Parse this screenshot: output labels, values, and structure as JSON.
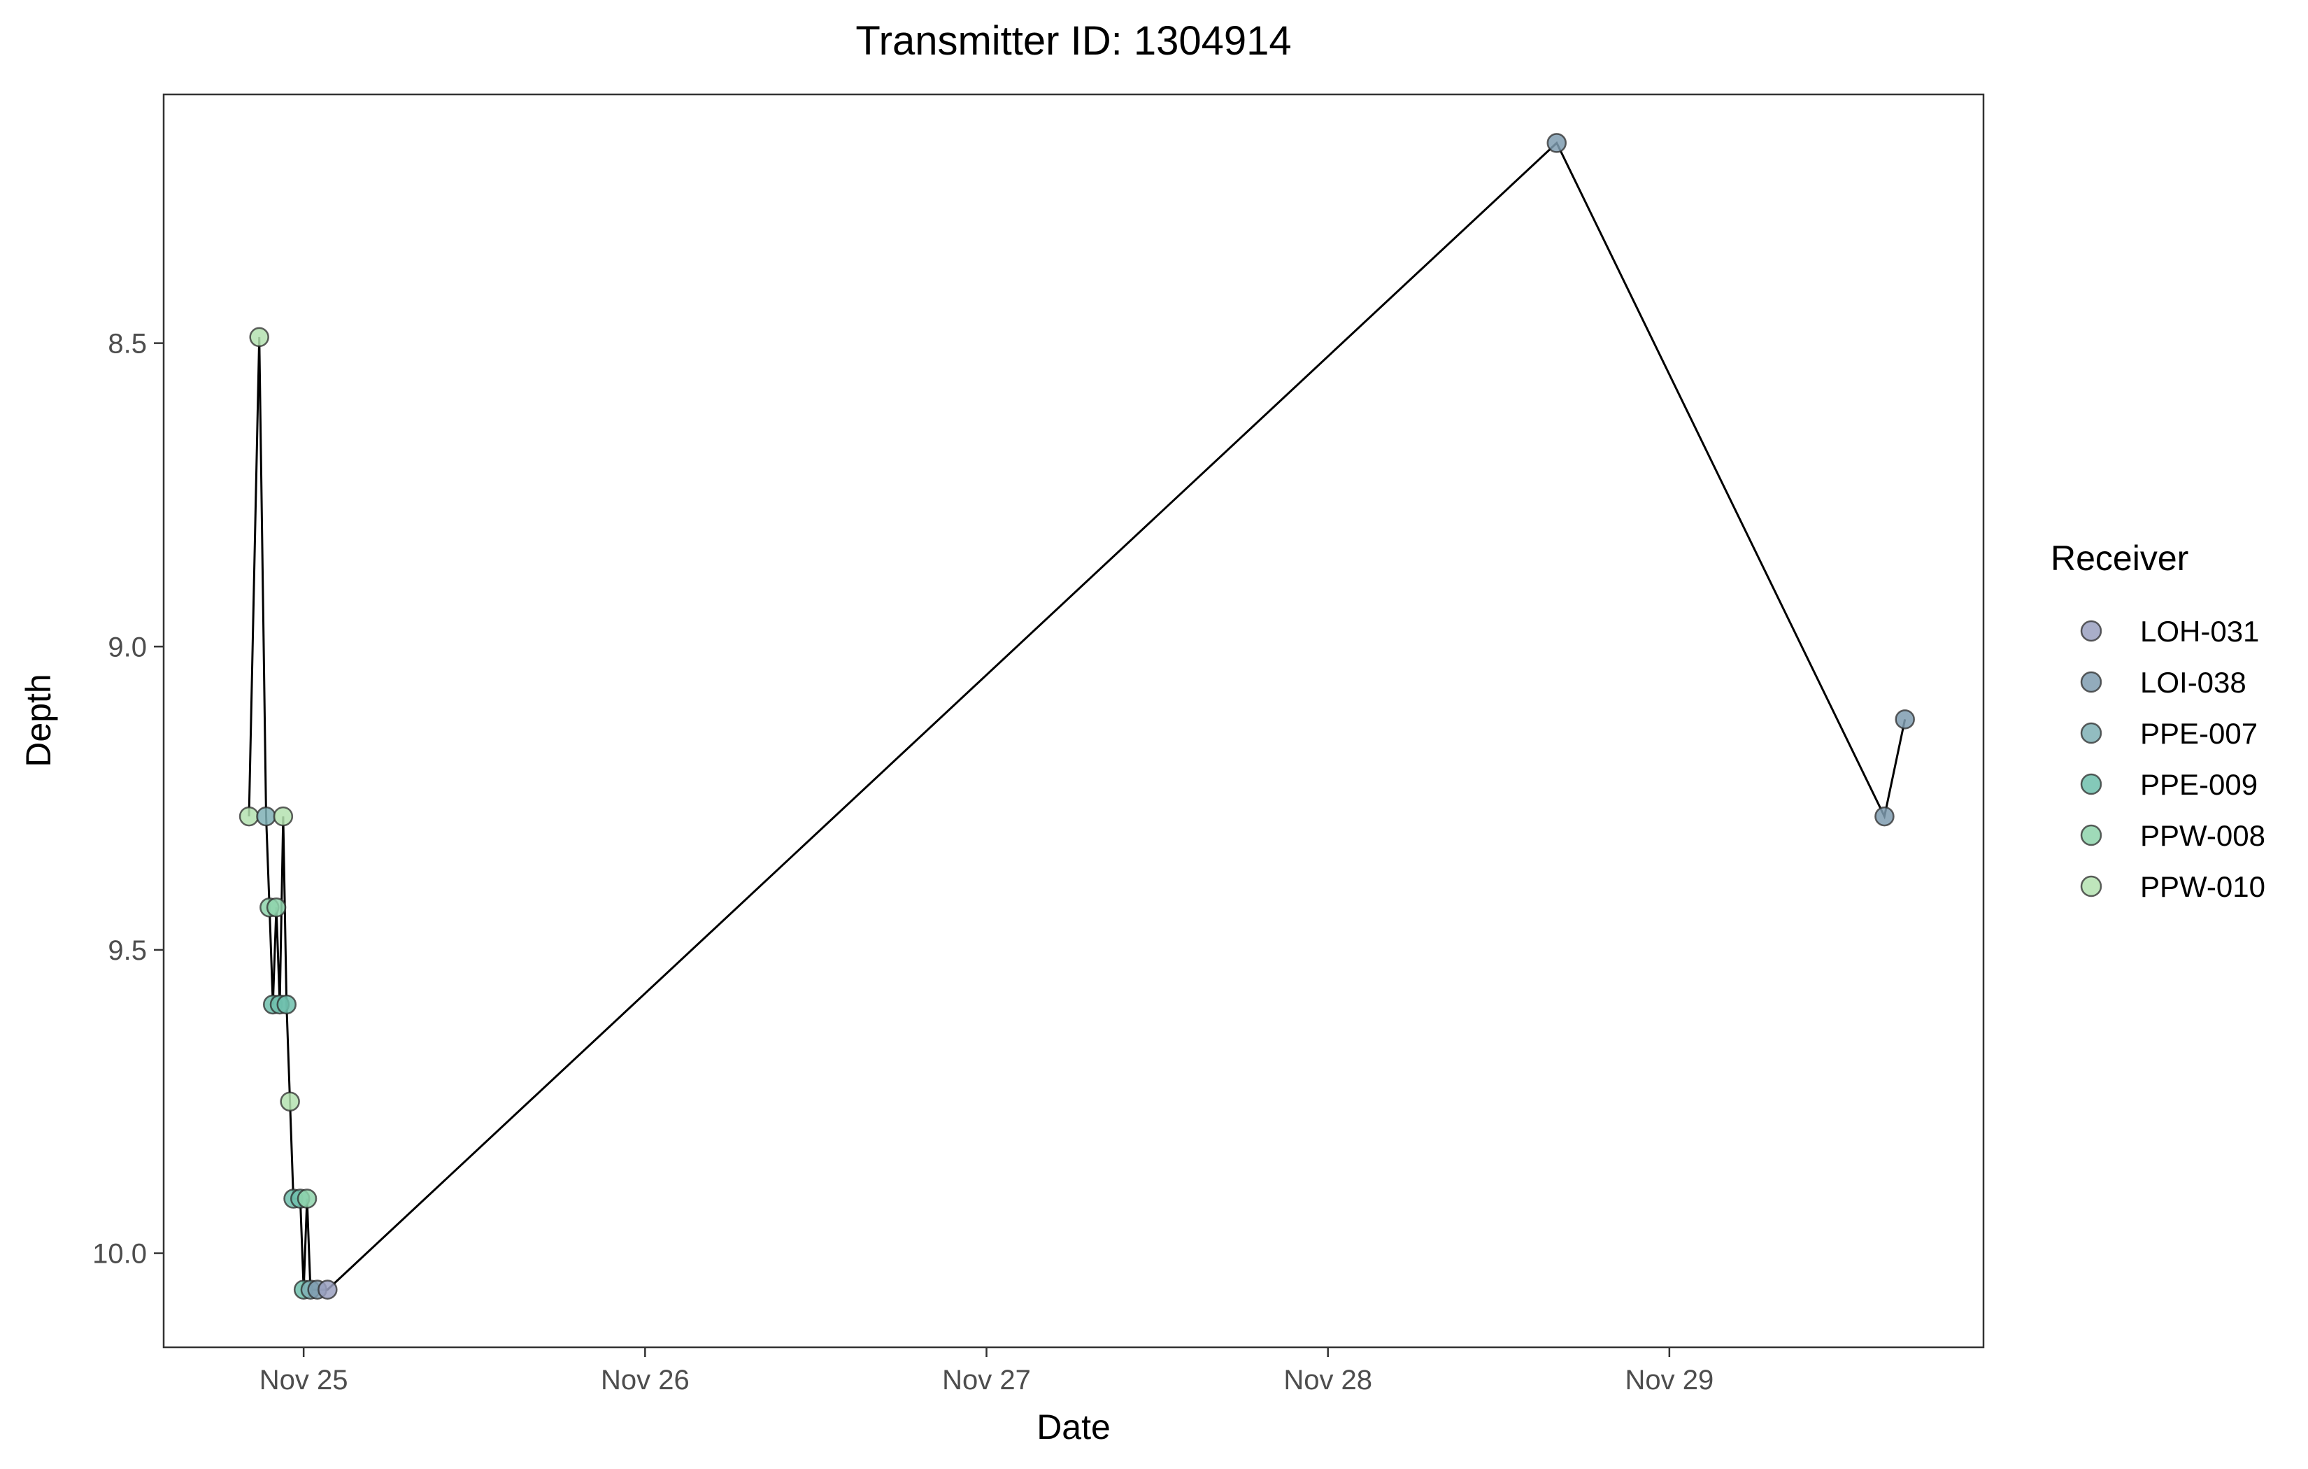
{
  "chart_data": {
    "type": "scatter",
    "title": "Transmitter ID: 1304914",
    "xlabel": "Date",
    "ylabel": "Depth",
    "x_unit": "date (November)",
    "x_ticks": [
      "Nov 25",
      "Nov 26",
      "Nov 27",
      "Nov 28",
      "Nov 29"
    ],
    "x_tick_values": [
      25,
      26,
      27,
      28,
      29
    ],
    "xlim": [
      24.59,
      29.92
    ],
    "y_reversed": true,
    "y_ticks": [
      8.5,
      9.0,
      9.5,
      10.0
    ],
    "ylim": [
      8.17,
      10.15
    ],
    "grid": false,
    "connecting_line": true,
    "legend": {
      "title": "Receiver",
      "placement": "right"
    },
    "series": [
      {
        "name": "LOH-031",
        "color": "#9aa0bf"
      },
      {
        "name": "LOI-038",
        "color": "#7f9cb0"
      },
      {
        "name": "PPE-007",
        "color": "#7fb0b5"
      },
      {
        "name": "PPE-009",
        "color": "#6fc0ad"
      },
      {
        "name": "PPW-008",
        "color": "#8ed4ab"
      },
      {
        "name": "PPW-010",
        "color": "#b4e2b0"
      }
    ],
    "points": [
      {
        "x": 24.84,
        "y": 9.28,
        "receiver": "PPW-010"
      },
      {
        "x": 24.87,
        "y": 8.49,
        "receiver": "PPW-010"
      },
      {
        "x": 24.89,
        "y": 9.28,
        "receiver": "PPE-007"
      },
      {
        "x": 24.9,
        "y": 9.43,
        "receiver": "PPW-008"
      },
      {
        "x": 24.91,
        "y": 9.59,
        "receiver": "PPE-009"
      },
      {
        "x": 24.92,
        "y": 9.43,
        "receiver": "PPW-008"
      },
      {
        "x": 24.93,
        "y": 9.59,
        "receiver": "PPE-009"
      },
      {
        "x": 24.94,
        "y": 9.28,
        "receiver": "PPW-010"
      },
      {
        "x": 24.95,
        "y": 9.59,
        "receiver": "PPE-009"
      },
      {
        "x": 24.96,
        "y": 9.75,
        "receiver": "PPW-010"
      },
      {
        "x": 24.97,
        "y": 9.91,
        "receiver": "PPE-009"
      },
      {
        "x": 24.99,
        "y": 9.91,
        "receiver": "PPE-009"
      },
      {
        "x": 25.0,
        "y": 10.06,
        "receiver": "PPE-009"
      },
      {
        "x": 25.01,
        "y": 9.91,
        "receiver": "PPW-008"
      },
      {
        "x": 25.02,
        "y": 10.06,
        "receiver": "PPE-007"
      },
      {
        "x": 25.04,
        "y": 10.06,
        "receiver": "LOI-038"
      },
      {
        "x": 25.07,
        "y": 10.06,
        "receiver": "LOH-031"
      },
      {
        "x": 28.67,
        "y": 8.17,
        "receiver": "LOI-038"
      },
      {
        "x": 29.63,
        "y": 9.28,
        "receiver": "LOI-038"
      },
      {
        "x": 29.69,
        "y": 9.12,
        "receiver": "LOI-038"
      }
    ]
  }
}
